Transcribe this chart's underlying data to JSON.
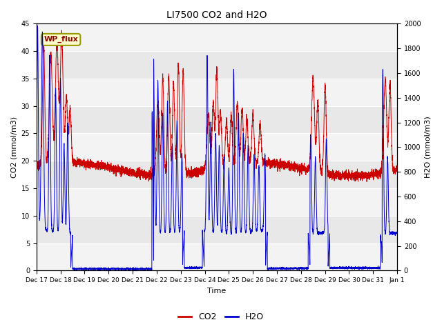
{
  "title": "LI7500 CO2 and H2O",
  "xlabel": "Time",
  "ylabel_left": "CO2 (mmol/m3)",
  "ylabel_right": "H2O (mmol/m3)",
  "ylim_left": [
    0,
    45
  ],
  "ylim_right": [
    0,
    2000
  ],
  "yticks_left": [
    0,
    5,
    10,
    15,
    20,
    25,
    30,
    35,
    40,
    45
  ],
  "yticks_right": [
    0,
    200,
    400,
    600,
    800,
    1000,
    1200,
    1400,
    1600,
    1800,
    2000
  ],
  "plot_bg_color": "#e8e8e8",
  "co2_color": "#cc0000",
  "h2o_color": "#0000cc",
  "legend_label_co2": "CO2",
  "legend_label_h2o": "H2O",
  "annotation_text": "WP_flux",
  "x_tick_labels": [
    "Dec 17",
    "Dec 18",
    "Dec 19",
    "Dec 20",
    "Dec 21",
    "Dec 22",
    "Dec 23",
    "Dec 24",
    "Dec 25",
    "Dec 26",
    "Dec 27",
    "Dec 28",
    "Dec 29",
    "Dec 30",
    "Dec 31",
    "Jan 1"
  ],
  "n_points": 5000,
  "seed": 7
}
